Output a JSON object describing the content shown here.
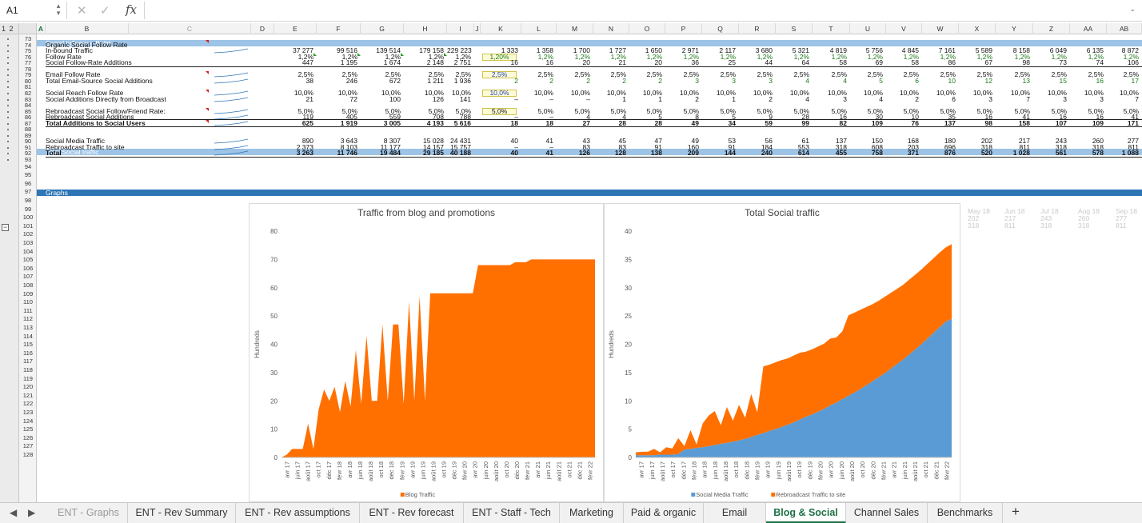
{
  "formula_bar": {
    "cell_ref": "A1",
    "fx": "fx",
    "formula": ""
  },
  "outline_levels": "1 2",
  "columns": [
    "A",
    "B",
    "C",
    "D",
    "E",
    "F",
    "G",
    "H",
    "I",
    "J",
    "K",
    "L",
    "M",
    "N",
    "O",
    "P",
    "Q",
    "R",
    "S",
    "T",
    "U",
    "V",
    "W",
    "X",
    "Y",
    "Z",
    "AA",
    "AB"
  ],
  "rows": [
    73,
    74,
    75,
    76,
    77,
    78,
    79,
    80,
    81,
    82,
    83,
    84,
    85,
    86,
    87,
    88,
    89,
    90,
    91,
    92,
    93,
    94,
    95,
    96,
    97,
    98,
    99,
    100,
    101,
    102,
    103,
    104,
    105,
    106,
    107,
    108,
    109,
    110,
    111,
    112,
    113,
    114,
    115,
    116,
    117,
    118,
    119,
    120,
    121,
    122,
    123,
    124,
    125,
    126,
    127,
    128
  ],
  "sections": {
    "social_influence": "Social Influence Build",
    "total_social": "Total Social traffic",
    "graphs": "Graphs"
  },
  "table_rows": [
    {
      "label": "Organic Social Follow Rate",
      "values": []
    },
    {
      "label": "In-bound Traffic",
      "values": [
        "37 277",
        "99 516",
        "139 514",
        "179 158",
        "229 223",
        "1 333",
        "1 358",
        "1 700",
        "1 727",
        "1 650",
        "2 971",
        "2 117",
        "3 680",
        "5 321",
        "4 819",
        "5 756",
        "4 845",
        "7 161",
        "5 589",
        "8 158",
        "6 049",
        "6 135",
        "8 872"
      ]
    },
    {
      "label": "Follow Rate",
      "values": [
        "1,2%",
        "1,2%",
        "1,2%",
        "1,2%",
        "1,2%",
        "1,20%",
        "1,2%",
        "1,2%",
        "1,2%",
        "1,2%",
        "1,2%",
        "1,2%",
        "1,2%",
        "1,2%",
        "1,2%",
        "1,2%",
        "1,2%",
        "1,2%",
        "1,2%",
        "1,2%",
        "1,2%",
        "1,2%",
        "1,2%"
      ]
    },
    {
      "label": "Social Follow-Rate Additions",
      "values": [
        "447",
        "1 195",
        "1 674",
        "2 148",
        "2 751",
        "16",
        "16",
        "20",
        "21",
        "20",
        "36",
        "25",
        "44",
        "64",
        "58",
        "69",
        "58",
        "86",
        "67",
        "98",
        "73",
        "74",
        "106"
      ]
    },
    {
      "label": "Email Follow Rate",
      "values": [
        "2,5%",
        "2,5%",
        "2,5%",
        "2,5%",
        "2,5%",
        "2,5%",
        "2,5%",
        "2,5%",
        "2,5%",
        "2,5%",
        "2,5%",
        "2,5%",
        "2,5%",
        "2,5%",
        "2,5%",
        "2,5%",
        "2,5%",
        "2,5%",
        "2,5%",
        "2,5%",
        "2,5%",
        "2,5%",
        "2,5%"
      ]
    },
    {
      "label": "Total Email-Source Social Additions",
      "values": [
        "38",
        "246",
        "672",
        "1 211",
        "1 936",
        "2",
        "2",
        "2",
        "2",
        "2",
        "3",
        "3",
        "3",
        "4",
        "4",
        "5",
        "6",
        "10",
        "12",
        "13",
        "15",
        "16",
        "17"
      ]
    },
    {
      "label": "Social Reach Follow Rate",
      "values": [
        "10,0%",
        "10,0%",
        "10,0%",
        "10,0%",
        "10,0%",
        "10,0%",
        "10,0%",
        "10,0%",
        "10,0%",
        "10,0%",
        "10,0%",
        "10,0%",
        "10,0%",
        "10,0%",
        "10,0%",
        "10,0%",
        "10,0%",
        "10,0%",
        "10,0%",
        "10,0%",
        "10,0%",
        "10,0%",
        "10,0%"
      ]
    },
    {
      "label": "Social Additions Directly from Broadcast",
      "values": [
        "21",
        "72",
        "100",
        "126",
        "141",
        "–",
        "–",
        "–",
        "1",
        "1",
        "2",
        "1",
        "2",
        "4",
        "3",
        "4",
        "2",
        "6",
        "3",
        "7",
        "3",
        "3",
        "7"
      ]
    },
    {
      "label": "Rebroadcast Social Follow/Friend Rate:",
      "values": [
        "5,0%",
        "5,0%",
        "5,0%",
        "5,0%",
        "5,0%",
        "5,0%",
        "5,0%",
        "5,0%",
        "5,0%",
        "5,0%",
        "5,0%",
        "5,0%",
        "5,0%",
        "5,0%",
        "5,0%",
        "5,0%",
        "5,0%",
        "5,0%",
        "5,0%",
        "5,0%",
        "5,0%",
        "5,0%",
        "5,0%"
      ]
    },
    {
      "label": "Rebroadcast Social  Additions",
      "values": [
        "119",
        "405",
        "559",
        "708",
        "788",
        "–",
        "–",
        "4",
        "4",
        "5",
        "8",
        "5",
        "9",
        "28",
        "16",
        "30",
        "10",
        "35",
        "16",
        "41",
        "16",
        "16",
        "41"
      ]
    },
    {
      "label": "Total Additions to Social Users",
      "values": [
        "625",
        "1 919",
        "3 005",
        "4 193",
        "5 616",
        "18",
        "18",
        "27",
        "28",
        "28",
        "49",
        "34",
        "59",
        "99",
        "82",
        "109",
        "76",
        "137",
        "98",
        "158",
        "107",
        "109",
        "171"
      ]
    },
    {
      "label": "Social Media Traffic",
      "values": [
        "890",
        "3 643",
        "8 307",
        "15 028",
        "24 431",
        "40",
        "41",
        "43",
        "45",
        "47",
        "49",
        "53",
        "56",
        "61",
        "137",
        "150",
        "168",
        "180",
        "202",
        "217",
        "243",
        "260",
        "277"
      ]
    },
    {
      "label": "Rebroadcast Traffic to site",
      "values": [
        "2 373",
        "8 103",
        "11 177",
        "14 157",
        "15 757",
        "–",
        "–",
        "83",
        "83",
        "91",
        "160",
        "91",
        "184",
        "553",
        "318",
        "608",
        "203",
        "696",
        "318",
        "811",
        "318",
        "318",
        "811"
      ]
    },
    {
      "label": "Total",
      "values": [
        "3 263",
        "11 746",
        "19 484",
        "29 185",
        "40 188",
        "40",
        "41",
        "126",
        "128",
        "138",
        "209",
        "144",
        "240",
        "614",
        "455",
        "758",
        "371",
        "876",
        "520",
        "1 028",
        "561",
        "578",
        "1 088"
      ]
    }
  ],
  "charts": {
    "blog": {
      "title": "Traffic from blog and promotions",
      "ylabel": "Hundreds",
      "legend": "Blog Traffic"
    },
    "social": {
      "title": "Total Social traffic",
      "ylabel": "Hundreds",
      "legend": [
        "Social Media Traffic",
        "Rebroadcast Traffic to site"
      ]
    }
  },
  "side_table": {
    "headers": [
      "May 18",
      "Jun 18",
      "Jul 18",
      "Aug 18",
      "Sep 18"
    ],
    "row1": [
      "202",
      "217",
      "243",
      "260",
      "277"
    ],
    "row2": [
      "318",
      "811",
      "318",
      "318",
      "811"
    ]
  },
  "chart_data": [
    {
      "type": "area",
      "title": "Traffic from blog and promotions",
      "ylabel": "Hundreds",
      "ylim": [
        0,
        80
      ],
      "yticks": [
        0,
        10,
        20,
        30,
        40,
        50,
        60,
        70,
        80
      ],
      "x_tick_labels": [
        "avr 17",
        "juin 17",
        "août 17",
        "oct 17",
        "déc 17",
        "févr 18",
        "avr 18",
        "juin 18",
        "août 18",
        "oct 18",
        "déc 18",
        "févr 19",
        "avr 19",
        "juin 19",
        "août 19",
        "oct 19",
        "déc 19",
        "févr 20",
        "avr 20",
        "juin 20",
        "août 20",
        "oct 20",
        "déc 20",
        "févr 21",
        "avr 21",
        "juin 21",
        "août 21",
        "oct 21",
        "déc 21",
        "févr 22"
      ],
      "series": [
        {
          "name": "Blog Traffic",
          "color": "#ff7000",
          "values": [
            0,
            1,
            3,
            3,
            3,
            12,
            3,
            17,
            24,
            20,
            25,
            16,
            27,
            18,
            38,
            19,
            43,
            20,
            20,
            47,
            20,
            47,
            47,
            19,
            55,
            20,
            57,
            20,
            58,
            58,
            58,
            58,
            58,
            58,
            58,
            58,
            58,
            68,
            68,
            68,
            68,
            68,
            68,
            68,
            69,
            69,
            69,
            70,
            70,
            70,
            70,
            70,
            70,
            70,
            70,
            70,
            70,
            70,
            70,
            70
          ]
        }
      ]
    },
    {
      "type": "area",
      "title": "Total Social traffic",
      "ylabel": "Hundreds",
      "ylim": [
        0,
        40
      ],
      "yticks": [
        0,
        5,
        10,
        15,
        20,
        25,
        30,
        35,
        40
      ],
      "x_tick_labels": [
        "avr 17",
        "juin 17",
        "août 17",
        "oct 17",
        "déc 17",
        "févr 18",
        "avr 18",
        "juin 18",
        "août 18",
        "oct 18",
        "déc 18",
        "févr 19",
        "avr 19",
        "juin 19",
        "août 19",
        "oct 19",
        "déc 19",
        "févr 20",
        "avr 20",
        "juin 20",
        "août 20",
        "oct 20",
        "déc 20",
        "févr 21",
        "avr 21",
        "juin 21",
        "août 21",
        "oct 21",
        "déc 21",
        "févr 22"
      ],
      "stacked": true,
      "series": [
        {
          "name": "Social Media Traffic",
          "color": "#5b9bd5",
          "values": [
            0.4,
            0.4,
            0.4,
            0.4,
            0.5,
            0.5,
            0.5,
            0.6,
            1.4,
            1.5,
            1.7,
            1.8,
            2.0,
            2.2,
            2.4,
            2.6,
            2.8,
            3.0,
            3.3,
            3.6,
            4.0,
            4.3,
            4.7,
            5.0,
            5.4,
            5.8,
            6.2,
            6.7,
            7.2,
            7.6,
            8.1,
            8.6,
            9.2,
            9.7,
            10.3,
            10.9,
            11.5,
            12.1,
            12.8,
            13.5,
            14.2,
            14.9,
            15.7,
            16.5,
            17.3,
            18.2,
            19.1,
            20.0,
            21.0,
            22.0,
            23.0,
            24.0,
            24.5
          ]
        },
        {
          "name": "Rebroadcast Traffic to site",
          "color": "#ff7000",
          "values": [
            0.5,
            0.6,
            0.6,
            1.1,
            0.4,
            1.3,
            1.1,
            2.8,
            0.6,
            3.3,
            0.6,
            4.2,
            5.4,
            6.0,
            3.3,
            6.3,
            3.7,
            6.3,
            3.7,
            7.6,
            4.0,
            11.8,
            11.7,
            11.8,
            11.8,
            11.7,
            11.8,
            11.8,
            11.5,
            11.5,
            11.5,
            11.5,
            11.8,
            11.5,
            12.0,
            14.2,
            14.1,
            14.0,
            13.8,
            13.6,
            13.5,
            13.5,
            13.4,
            13.3,
            13.2,
            13.2,
            13.2,
            13.2,
            13.2,
            13.2,
            13.2,
            13.1,
            13.2
          ]
        }
      ]
    }
  ],
  "tabs": [
    "ENT - Graphs",
    "ENT - Rev Summary",
    "ENT - Rev assumptions",
    "ENT - Rev forecast",
    "ENT - Staff - Tech",
    "Marketing",
    "Paid & organic",
    "Email",
    "Blog & Social",
    "Channel Sales",
    "Benchmarks"
  ],
  "active_tab": "Blog & Social",
  "add_tab": "+"
}
